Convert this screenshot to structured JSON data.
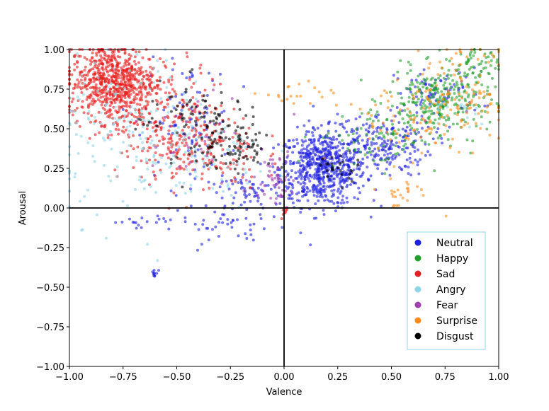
{
  "chart_data": {
    "type": "scatter",
    "title": "",
    "xlabel": "Valence",
    "ylabel": "Arousal",
    "xlim": [
      -1.0,
      1.0
    ],
    "ylim": [
      -1.0,
      1.0
    ],
    "xticks": [
      "−1.00",
      "−0.75",
      "−0.50",
      "−0.25",
      "0.00",
      "0.25",
      "0.50",
      "0.75",
      "1.00"
    ],
    "yticks": [
      "−1.00",
      "−0.75",
      "−0.50",
      "−0.25",
      "0.00",
      "0.25",
      "0.50",
      "0.75",
      "1.00"
    ],
    "xtick_values": [
      -1.0,
      -0.75,
      -0.5,
      -0.25,
      0.0,
      0.25,
      0.5,
      0.75,
      1.0
    ],
    "ytick_values": [
      -1.0,
      -0.75,
      -0.5,
      -0.25,
      0.0,
      0.25,
      0.5,
      0.75,
      1.0
    ],
    "reference_lines": {
      "x": 0.0,
      "y": 0.0
    },
    "grid": false,
    "legend_position": "lower-right",
    "series": [
      {
        "name": "Neutral",
        "color": "#1f1fe0",
        "clusters": [
          {
            "cx": 0.18,
            "cy": 0.25,
            "sx": 0.1,
            "sy": 0.12,
            "n": 650
          },
          {
            "cx": 0.45,
            "cy": 0.4,
            "sx": 0.12,
            "sy": 0.1,
            "n": 220
          },
          {
            "cx": 0.72,
            "cy": 0.72,
            "sx": 0.1,
            "sy": 0.08,
            "n": 80
          },
          {
            "cx": -0.45,
            "cy": 0.55,
            "sx": 0.1,
            "sy": 0.18,
            "n": 90
          },
          {
            "cx": -0.15,
            "cy": 0.1,
            "sx": 0.1,
            "sy": 0.05,
            "n": 70
          },
          {
            "cx": -0.25,
            "cy": -0.12,
            "sx": 0.12,
            "sy": 0.05,
            "n": 40
          },
          {
            "cx": -0.6,
            "cy": -0.42,
            "sx": 0.01,
            "sy": 0.02,
            "n": 10
          },
          {
            "cx": -0.68,
            "cy": -0.08,
            "sx": 0.08,
            "sy": 0.02,
            "n": 18
          }
        ]
      },
      {
        "name": "Happy",
        "color": "#22a02c",
        "clusters": [
          {
            "cx": 0.72,
            "cy": 0.68,
            "sx": 0.12,
            "sy": 0.1,
            "n": 260
          },
          {
            "cx": 0.45,
            "cy": 0.45,
            "sx": 0.15,
            "sy": 0.1,
            "n": 90
          },
          {
            "cx": 0.88,
            "cy": 0.9,
            "sx": 0.06,
            "sy": 0.06,
            "n": 60
          }
        ]
      },
      {
        "name": "Sad",
        "color": "#e81e1e",
        "clusters": [
          {
            "cx": -0.8,
            "cy": 0.8,
            "sx": 0.1,
            "sy": 0.12,
            "n": 700
          },
          {
            "cx": -0.55,
            "cy": 0.55,
            "sx": 0.15,
            "sy": 0.18,
            "n": 260
          },
          {
            "cx": -0.35,
            "cy": 0.35,
            "sx": 0.12,
            "sy": 0.12,
            "n": 120
          },
          {
            "cx": 0.0,
            "cy": -0.02,
            "sx": 0.01,
            "sy": 0.02,
            "n": 8
          }
        ]
      },
      {
        "name": "Angry",
        "color": "#8dd6e6",
        "clusters": [
          {
            "cx": -0.7,
            "cy": 0.45,
            "sx": 0.18,
            "sy": 0.25,
            "n": 180
          },
          {
            "cx": -0.35,
            "cy": 0.3,
            "sx": 0.15,
            "sy": 0.15,
            "n": 70
          },
          {
            "cx": 0.8,
            "cy": 0.62,
            "sx": 0.08,
            "sy": 0.06,
            "n": 20
          }
        ]
      },
      {
        "name": "Fear",
        "color": "#a040b0",
        "clusters": [
          {
            "cx": -0.05,
            "cy": 0.2,
            "sx": 0.05,
            "sy": 0.08,
            "n": 50
          },
          {
            "cx": -0.4,
            "cy": 0.5,
            "sx": 0.15,
            "sy": 0.15,
            "n": 30
          }
        ]
      },
      {
        "name": "Surprise",
        "color": "#ff8c1a",
        "clusters": [
          {
            "cx": 0.82,
            "cy": 0.7,
            "sx": 0.12,
            "sy": 0.15,
            "n": 120
          },
          {
            "cx": 0.55,
            "cy": 0.55,
            "sx": 0.15,
            "sy": 0.12,
            "n": 60
          },
          {
            "cx": 0.05,
            "cy": 0.7,
            "sx": 0.08,
            "sy": 0.05,
            "n": 20
          },
          {
            "cx": 0.55,
            "cy": 0.1,
            "sx": 0.08,
            "sy": 0.05,
            "n": 25
          }
        ]
      },
      {
        "name": "Disgust",
        "color": "#000000",
        "clusters": [
          {
            "cx": -0.25,
            "cy": 0.4,
            "sx": 0.1,
            "sy": 0.1,
            "n": 110
          },
          {
            "cx": -0.45,
            "cy": 0.6,
            "sx": 0.12,
            "sy": 0.1,
            "n": 60
          },
          {
            "cx": 0.25,
            "cy": 0.25,
            "sx": 0.05,
            "sy": 0.05,
            "n": 25
          }
        ]
      }
    ]
  }
}
